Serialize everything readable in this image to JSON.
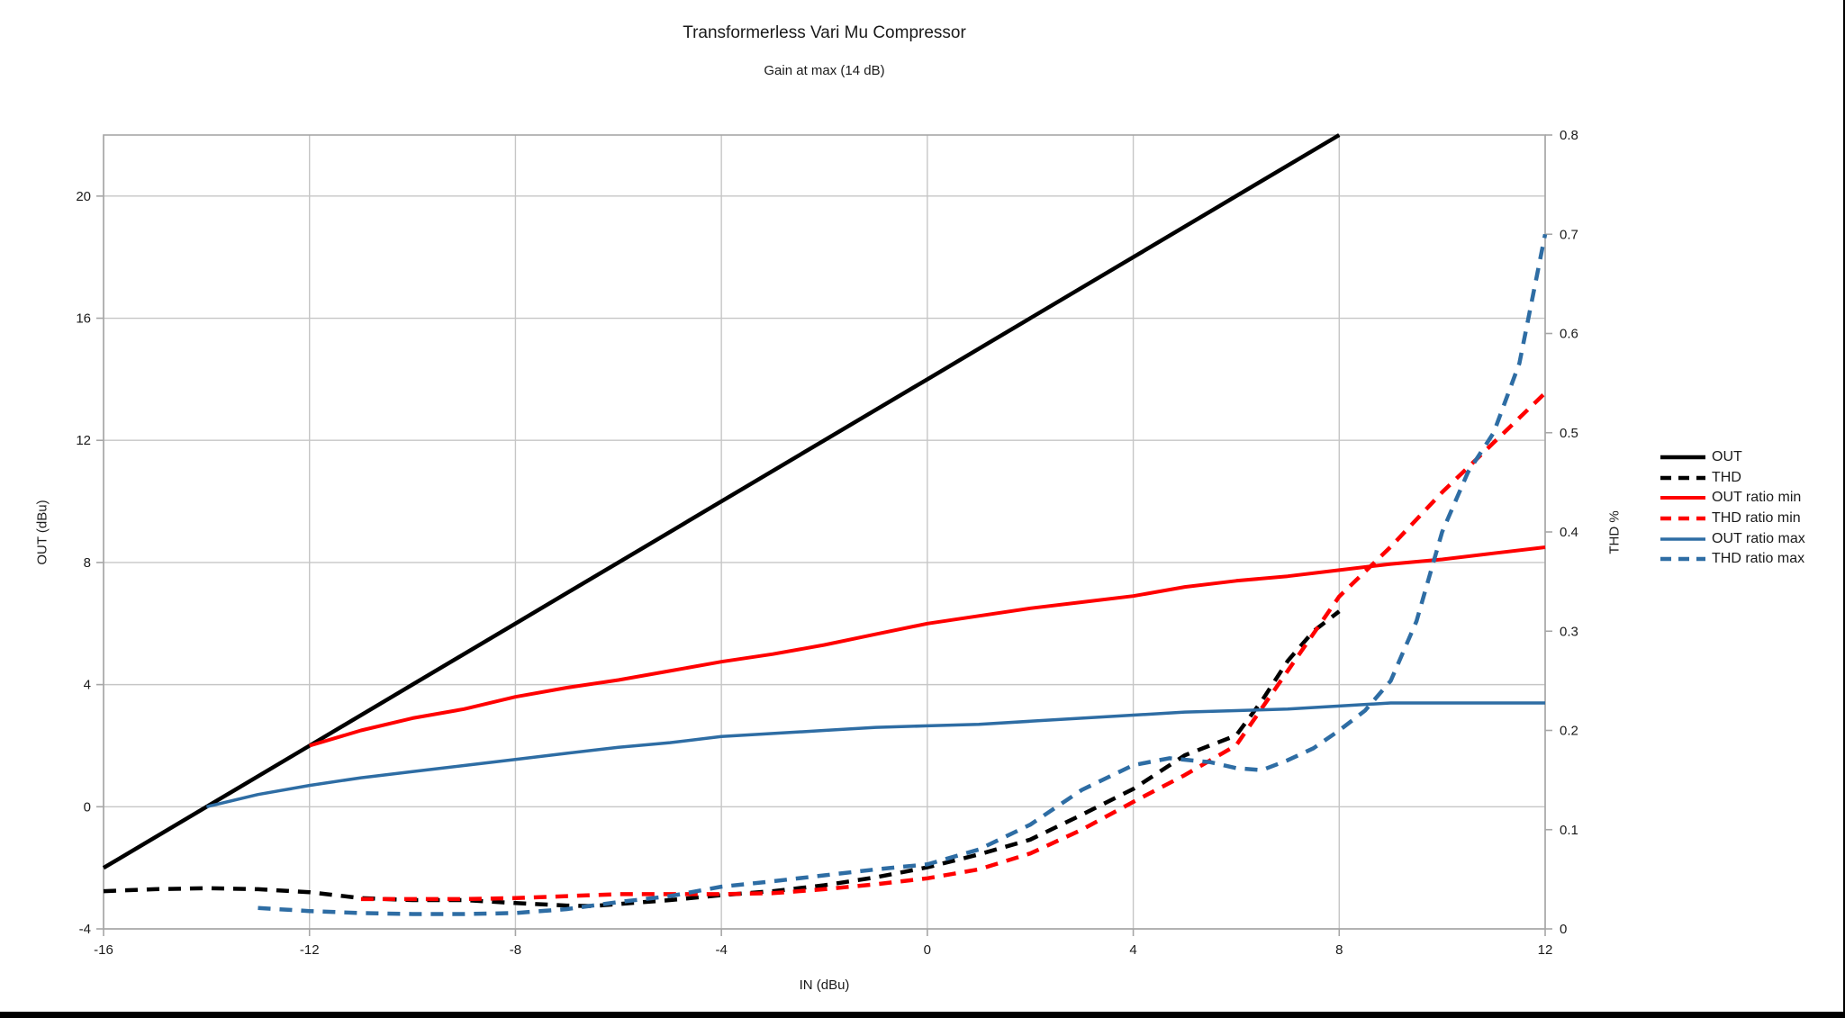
{
  "page": {
    "background": "#ffffff",
    "frame_color": "#000000"
  },
  "header": {
    "title": "Transformerless Vari Mu Compressor",
    "subtitle": "Gain at max (14 dB)"
  },
  "chart_data": {
    "type": "line",
    "title": "Transformerless Vari Mu Compressor",
    "subtitle": "Gain at max (14 dB)",
    "xlabel": "IN (dBu)",
    "ylabel_left": "OUT (dBu)",
    "ylabel_right": "THD %",
    "legend_position": "right",
    "grid": "horizontal-and-vertical",
    "grid_color": "#c6c6c6",
    "axis_color": "#a6a6a6",
    "text_color": "#1a1a1a",
    "x_axis": {
      "min": -16,
      "max": 12,
      "ticks": [
        -16,
        -12,
        -8,
        -4,
        0,
        4,
        8,
        12
      ]
    },
    "y_axis_left": {
      "min": -4,
      "max": 22,
      "ticks": [
        -4,
        0,
        4,
        8,
        12,
        16,
        20
      ],
      "gridlines": true
    },
    "y_axis_right": {
      "min": 0,
      "max": 0.8,
      "ticks": [
        0,
        0.1,
        0.2,
        0.3,
        0.4,
        0.5,
        0.6,
        0.7,
        0.8
      ],
      "gridlines": false
    },
    "series": [
      {
        "name": "OUT",
        "axis": "left",
        "color": "#000000",
        "style": "solid",
        "width": 4.5,
        "points": [
          [
            -16,
            -2
          ],
          [
            -14,
            0
          ],
          [
            -12,
            2
          ],
          [
            -10,
            4
          ],
          [
            -8,
            6
          ],
          [
            -6,
            8
          ],
          [
            -4,
            10
          ],
          [
            -2,
            12
          ],
          [
            0,
            14
          ],
          [
            2,
            16
          ],
          [
            4,
            18
          ],
          [
            6,
            20
          ],
          [
            8,
            22
          ]
        ]
      },
      {
        "name": "THD",
        "axis": "right",
        "color": "#000000",
        "style": "dashed",
        "width": 4.5,
        "points": [
          [
            -16,
            0.038
          ],
          [
            -15,
            0.04
          ],
          [
            -14,
            0.041
          ],
          [
            -13,
            0.04
          ],
          [
            -12,
            0.037
          ],
          [
            -11,
            0.031
          ],
          [
            -10,
            0.029
          ],
          [
            -9,
            0.029
          ],
          [
            -8,
            0.026
          ],
          [
            -7,
            0.0235
          ],
          [
            -6.5,
            0.023
          ],
          [
            -6,
            0.025
          ],
          [
            -5,
            0.029
          ],
          [
            -4,
            0.034
          ],
          [
            -3,
            0.038
          ],
          [
            -2,
            0.044
          ],
          [
            -1,
            0.052
          ],
          [
            0,
            0.062
          ],
          [
            1,
            0.075
          ],
          [
            2,
            0.09
          ],
          [
            3,
            0.115
          ],
          [
            4,
            0.141
          ],
          [
            5,
            0.175
          ],
          [
            6,
            0.195
          ],
          [
            6.5,
            0.23
          ],
          [
            7,
            0.27
          ],
          [
            7.5,
            0.3
          ],
          [
            8,
            0.32
          ]
        ]
      },
      {
        "name": "OUT ratio min",
        "axis": "left",
        "color": "#ff0000",
        "style": "solid",
        "width": 4,
        "points": [
          [
            -12,
            2.0
          ],
          [
            -11,
            2.5
          ],
          [
            -10,
            2.9
          ],
          [
            -9,
            3.2
          ],
          [
            -8,
            3.6
          ],
          [
            -7,
            3.9
          ],
          [
            -6,
            4.15
          ],
          [
            -5,
            4.45
          ],
          [
            -4,
            4.75
          ],
          [
            -3,
            5.0
          ],
          [
            -2,
            5.3
          ],
          [
            -1,
            5.65
          ],
          [
            0,
            6.0
          ],
          [
            1,
            6.25
          ],
          [
            2,
            6.5
          ],
          [
            3,
            6.7
          ],
          [
            4,
            6.9
          ],
          [
            5,
            7.2
          ],
          [
            6,
            7.4
          ],
          [
            7,
            7.55
          ],
          [
            8,
            7.75
          ],
          [
            9,
            7.95
          ],
          [
            10,
            8.1
          ],
          [
            11,
            8.3
          ],
          [
            12,
            8.5
          ]
        ]
      },
      {
        "name": "THD ratio min",
        "axis": "right",
        "color": "#ff0000",
        "style": "dashed",
        "width": 4.5,
        "points": [
          [
            -11,
            0.03
          ],
          [
            -10,
            0.03
          ],
          [
            -9,
            0.03
          ],
          [
            -8,
            0.031
          ],
          [
            -7,
            0.033
          ],
          [
            -6,
            0.035
          ],
          [
            -5,
            0.035
          ],
          [
            -4,
            0.035
          ],
          [
            -3,
            0.036
          ],
          [
            -2,
            0.04
          ],
          [
            -1,
            0.045
          ],
          [
            0,
            0.051
          ],
          [
            1,
            0.06
          ],
          [
            2,
            0.076
          ],
          [
            3,
            0.1
          ],
          [
            4,
            0.128
          ],
          [
            5,
            0.155
          ],
          [
            6,
            0.185
          ],
          [
            7,
            0.26
          ],
          [
            8,
            0.335
          ],
          [
            9,
            0.385
          ],
          [
            10,
            0.44
          ],
          [
            11,
            0.49
          ],
          [
            12,
            0.54
          ]
        ]
      },
      {
        "name": "OUT ratio max",
        "axis": "left",
        "color": "#2e6da4",
        "style": "solid",
        "width": 3.5,
        "points": [
          [
            -14,
            0
          ],
          [
            -13,
            0.4
          ],
          [
            -12,
            0.7
          ],
          [
            -11,
            0.95
          ],
          [
            -10,
            1.15
          ],
          [
            -9,
            1.35
          ],
          [
            -8,
            1.55
          ],
          [
            -7,
            1.75
          ],
          [
            -6,
            1.95
          ],
          [
            -5,
            2.1
          ],
          [
            -4,
            2.3
          ],
          [
            -3,
            2.4
          ],
          [
            -2,
            2.5
          ],
          [
            -1,
            2.6
          ],
          [
            0,
            2.65
          ],
          [
            1,
            2.7
          ],
          [
            2,
            2.8
          ],
          [
            3,
            2.9
          ],
          [
            4,
            3.0
          ],
          [
            5,
            3.1
          ],
          [
            6,
            3.15
          ],
          [
            7,
            3.2
          ],
          [
            8,
            3.3
          ],
          [
            9,
            3.4
          ],
          [
            10,
            3.4
          ],
          [
            11,
            3.4
          ],
          [
            12,
            3.4
          ]
        ]
      },
      {
        "name": "THD ratio max",
        "axis": "right",
        "color": "#2e6da4",
        "style": "dashed",
        "width": 4.5,
        "points": [
          [
            -13,
            0.021
          ],
          [
            -12,
            0.018
          ],
          [
            -11,
            0.016
          ],
          [
            -10,
            0.015
          ],
          [
            -9,
            0.015
          ],
          [
            -8,
            0.016
          ],
          [
            -7,
            0.02
          ],
          [
            -6,
            0.027
          ],
          [
            -5,
            0.033
          ],
          [
            -4,
            0.0425
          ],
          [
            -3,
            0.048
          ],
          [
            -2,
            0.054
          ],
          [
            -1,
            0.06
          ],
          [
            0,
            0.065
          ],
          [
            1,
            0.08
          ],
          [
            2,
            0.105
          ],
          [
            3,
            0.14
          ],
          [
            4,
            0.165
          ],
          [
            4.7,
            0.172
          ],
          [
            5.5,
            0.168
          ],
          [
            6,
            0.162
          ],
          [
            6.5,
            0.16
          ],
          [
            7,
            0.17
          ],
          [
            7.5,
            0.182
          ],
          [
            8,
            0.2
          ],
          [
            8.5,
            0.22
          ],
          [
            9,
            0.25
          ],
          [
            9.5,
            0.31
          ],
          [
            10,
            0.4
          ],
          [
            10.5,
            0.46
          ],
          [
            11,
            0.5
          ],
          [
            11.5,
            0.57
          ],
          [
            12,
            0.7
          ]
        ]
      }
    ]
  }
}
